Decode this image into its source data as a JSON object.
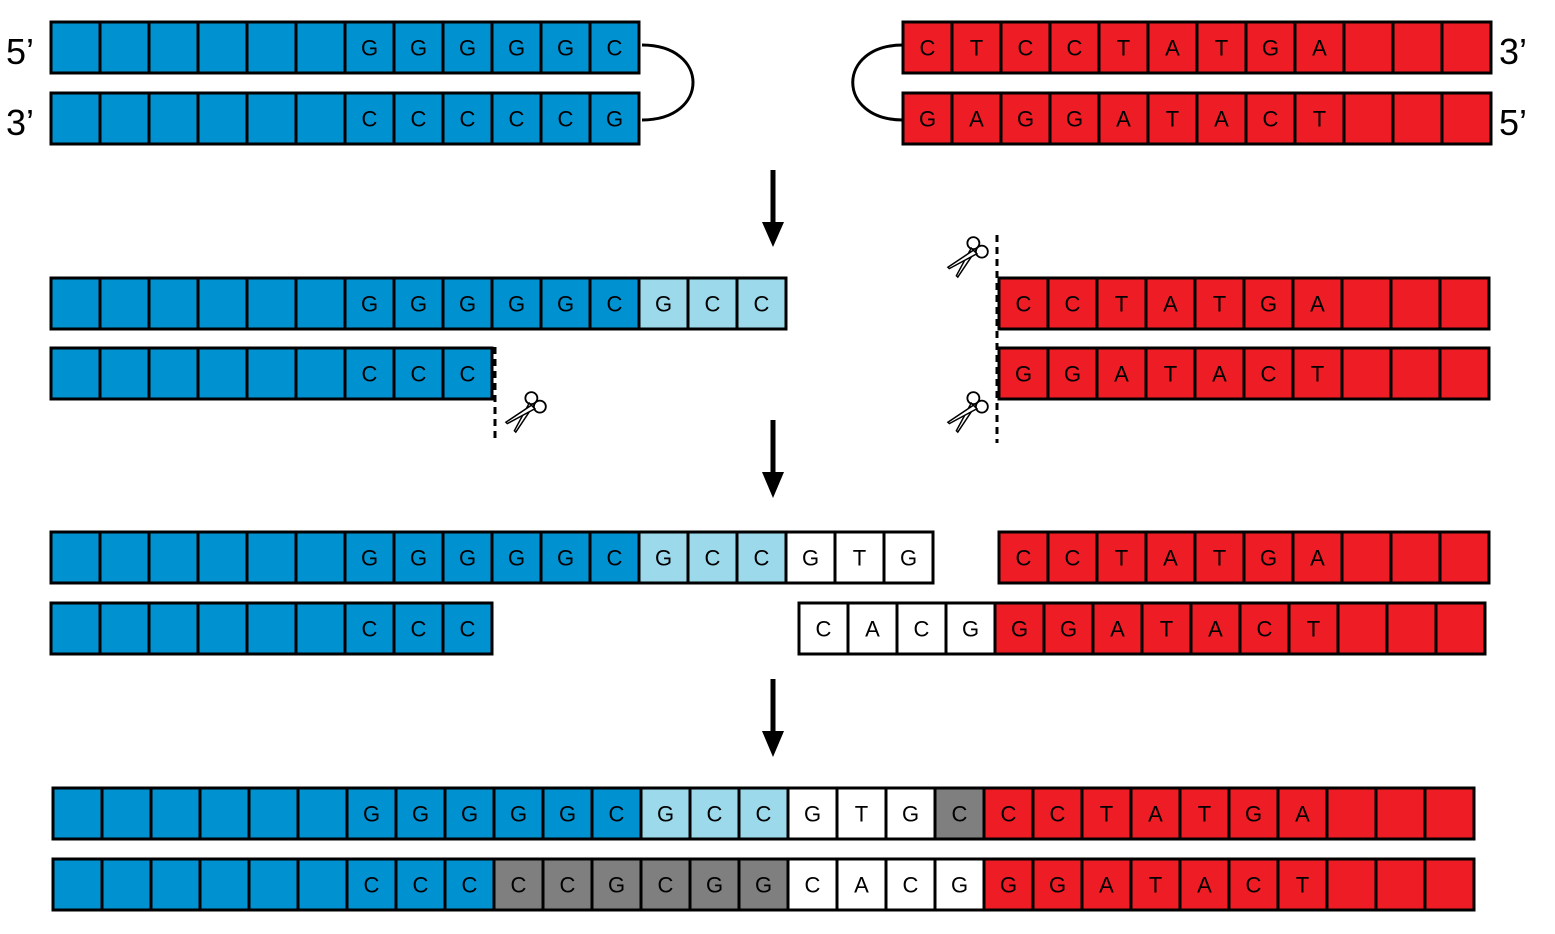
{
  "colors": {
    "blue": "#0091d1",
    "light_blue": "#9cd9ea",
    "red": "#ee1c25",
    "white": "#ffffff",
    "gray": "#7f7f7f",
    "stroke": "#000000"
  },
  "end_labels": {
    "top_left": "5’",
    "bottom_left": "3’",
    "top_right": "3’",
    "bottom_right": "5’"
  },
  "icons": [
    "scissors-icon",
    "down-arrow-icon",
    "cut-site-dashed-line",
    "hairpin-loop"
  ],
  "stages": [
    {
      "name": "hairpin-ends",
      "strands": [
        {
          "name": "blue-hairpin-top",
          "cells": [
            {
              "b": "",
              "c": "blue"
            },
            {
              "b": "",
              "c": "blue"
            },
            {
              "b": "",
              "c": "blue"
            },
            {
              "b": "",
              "c": "blue"
            },
            {
              "b": "",
              "c": "blue"
            },
            {
              "b": "",
              "c": "blue"
            },
            {
              "b": "G",
              "c": "blue"
            },
            {
              "b": "G",
              "c": "blue"
            },
            {
              "b": "G",
              "c": "blue"
            },
            {
              "b": "G",
              "c": "blue"
            },
            {
              "b": "G",
              "c": "blue"
            },
            {
              "b": "C",
              "c": "blue"
            }
          ]
        },
        {
          "name": "blue-hairpin-bottom",
          "cells": [
            {
              "b": "",
              "c": "blue"
            },
            {
              "b": "",
              "c": "blue"
            },
            {
              "b": "",
              "c": "blue"
            },
            {
              "b": "",
              "c": "blue"
            },
            {
              "b": "",
              "c": "blue"
            },
            {
              "b": "",
              "c": "blue"
            },
            {
              "b": "C",
              "c": "blue"
            },
            {
              "b": "C",
              "c": "blue"
            },
            {
              "b": "C",
              "c": "blue"
            },
            {
              "b": "C",
              "c": "blue"
            },
            {
              "b": "C",
              "c": "blue"
            },
            {
              "b": "G",
              "c": "blue"
            }
          ]
        },
        {
          "name": "red-hairpin-top",
          "cells": [
            {
              "b": "C",
              "c": "red"
            },
            {
              "b": "T",
              "c": "red"
            },
            {
              "b": "C",
              "c": "red"
            },
            {
              "b": "C",
              "c": "red"
            },
            {
              "b": "T",
              "c": "red"
            },
            {
              "b": "A",
              "c": "red"
            },
            {
              "b": "T",
              "c": "red"
            },
            {
              "b": "G",
              "c": "red"
            },
            {
              "b": "A",
              "c": "red"
            },
            {
              "b": "",
              "c": "red"
            },
            {
              "b": "",
              "c": "red"
            },
            {
              "b": "",
              "c": "red"
            }
          ]
        },
        {
          "name": "red-hairpin-bottom",
          "cells": [
            {
              "b": "G",
              "c": "red"
            },
            {
              "b": "A",
              "c": "red"
            },
            {
              "b": "G",
              "c": "red"
            },
            {
              "b": "G",
              "c": "red"
            },
            {
              "b": "A",
              "c": "red"
            },
            {
              "b": "T",
              "c": "red"
            },
            {
              "b": "A",
              "c": "red"
            },
            {
              "b": "C",
              "c": "red"
            },
            {
              "b": "T",
              "c": "red"
            },
            {
              "b": "",
              "c": "red"
            },
            {
              "b": "",
              "c": "red"
            },
            {
              "b": "",
              "c": "red"
            }
          ]
        }
      ]
    },
    {
      "name": "opened-hairpins",
      "strands": [
        {
          "name": "blue-opened-top",
          "cells": [
            {
              "b": "",
              "c": "blue"
            },
            {
              "b": "",
              "c": "blue"
            },
            {
              "b": "",
              "c": "blue"
            },
            {
              "b": "",
              "c": "blue"
            },
            {
              "b": "",
              "c": "blue"
            },
            {
              "b": "",
              "c": "blue"
            },
            {
              "b": "G",
              "c": "blue"
            },
            {
              "b": "G",
              "c": "blue"
            },
            {
              "b": "G",
              "c": "blue"
            },
            {
              "b": "G",
              "c": "blue"
            },
            {
              "b": "G",
              "c": "blue"
            },
            {
              "b": "C",
              "c": "blue"
            },
            {
              "b": "G",
              "c": "light_blue"
            },
            {
              "b": "C",
              "c": "light_blue"
            },
            {
              "b": "C",
              "c": "light_blue"
            }
          ]
        },
        {
          "name": "blue-opened-bottom",
          "cells": [
            {
              "b": "",
              "c": "blue"
            },
            {
              "b": "",
              "c": "blue"
            },
            {
              "b": "",
              "c": "blue"
            },
            {
              "b": "",
              "c": "blue"
            },
            {
              "b": "",
              "c": "blue"
            },
            {
              "b": "",
              "c": "blue"
            },
            {
              "b": "C",
              "c": "blue"
            },
            {
              "b": "C",
              "c": "blue"
            },
            {
              "b": "C",
              "c": "blue"
            }
          ]
        },
        {
          "name": "red-opened-top",
          "cells": [
            {
              "b": "C",
              "c": "red"
            },
            {
              "b": "C",
              "c": "red"
            },
            {
              "b": "T",
              "c": "red"
            },
            {
              "b": "A",
              "c": "red"
            },
            {
              "b": "T",
              "c": "red"
            },
            {
              "b": "G",
              "c": "red"
            },
            {
              "b": "A",
              "c": "red"
            },
            {
              "b": "",
              "c": "red"
            },
            {
              "b": "",
              "c": "red"
            },
            {
              "b": "",
              "c": "red"
            }
          ]
        },
        {
          "name": "red-opened-bottom",
          "cells": [
            {
              "b": "G",
              "c": "red"
            },
            {
              "b": "G",
              "c": "red"
            },
            {
              "b": "A",
              "c": "red"
            },
            {
              "b": "T",
              "c": "red"
            },
            {
              "b": "A",
              "c": "red"
            },
            {
              "b": "C",
              "c": "red"
            },
            {
              "b": "T",
              "c": "red"
            },
            {
              "b": "",
              "c": "red"
            },
            {
              "b": "",
              "c": "red"
            },
            {
              "b": "",
              "c": "red"
            }
          ]
        }
      ]
    },
    {
      "name": "n-nucleotides-added",
      "strands": [
        {
          "name": "blue-extended-top",
          "cells": [
            {
              "b": "",
              "c": "blue"
            },
            {
              "b": "",
              "c": "blue"
            },
            {
              "b": "",
              "c": "blue"
            },
            {
              "b": "",
              "c": "blue"
            },
            {
              "b": "",
              "c": "blue"
            },
            {
              "b": "",
              "c": "blue"
            },
            {
              "b": "G",
              "c": "blue"
            },
            {
              "b": "G",
              "c": "blue"
            },
            {
              "b": "G",
              "c": "blue"
            },
            {
              "b": "G",
              "c": "blue"
            },
            {
              "b": "G",
              "c": "blue"
            },
            {
              "b": "C",
              "c": "blue"
            },
            {
              "b": "G",
              "c": "light_blue"
            },
            {
              "b": "C",
              "c": "light_blue"
            },
            {
              "b": "C",
              "c": "light_blue"
            },
            {
              "b": "G",
              "c": "white"
            },
            {
              "b": "T",
              "c": "white"
            },
            {
              "b": "G",
              "c": "white"
            }
          ]
        },
        {
          "name": "blue-extended-bottom",
          "cells": [
            {
              "b": "",
              "c": "blue"
            },
            {
              "b": "",
              "c": "blue"
            },
            {
              "b": "",
              "c": "blue"
            },
            {
              "b": "",
              "c": "blue"
            },
            {
              "b": "",
              "c": "blue"
            },
            {
              "b": "",
              "c": "blue"
            },
            {
              "b": "C",
              "c": "blue"
            },
            {
              "b": "C",
              "c": "blue"
            },
            {
              "b": "C",
              "c": "blue"
            }
          ]
        },
        {
          "name": "red-extended-top",
          "cells": [
            {
              "b": "C",
              "c": "red"
            },
            {
              "b": "C",
              "c": "red"
            },
            {
              "b": "T",
              "c": "red"
            },
            {
              "b": "A",
              "c": "red"
            },
            {
              "b": "T",
              "c": "red"
            },
            {
              "b": "G",
              "c": "red"
            },
            {
              "b": "A",
              "c": "red"
            },
            {
              "b": "",
              "c": "red"
            },
            {
              "b": "",
              "c": "red"
            },
            {
              "b": "",
              "c": "red"
            }
          ]
        },
        {
          "name": "red-extended-bottom",
          "cells": [
            {
              "b": "C",
              "c": "white"
            },
            {
              "b": "A",
              "c": "white"
            },
            {
              "b": "C",
              "c": "white"
            },
            {
              "b": "G",
              "c": "white"
            },
            {
              "b": "G",
              "c": "red"
            },
            {
              "b": "G",
              "c": "red"
            },
            {
              "b": "A",
              "c": "red"
            },
            {
              "b": "T",
              "c": "red"
            },
            {
              "b": "A",
              "c": "red"
            },
            {
              "b": "C",
              "c": "red"
            },
            {
              "b": "T",
              "c": "red"
            },
            {
              "b": "",
              "c": "red"
            },
            {
              "b": "",
              "c": "red"
            },
            {
              "b": "",
              "c": "red"
            }
          ]
        }
      ]
    },
    {
      "name": "joined-junction",
      "strands": [
        {
          "name": "joined-top",
          "cells": [
            {
              "b": "",
              "c": "blue"
            },
            {
              "b": "",
              "c": "blue"
            },
            {
              "b": "",
              "c": "blue"
            },
            {
              "b": "",
              "c": "blue"
            },
            {
              "b": "",
              "c": "blue"
            },
            {
              "b": "",
              "c": "blue"
            },
            {
              "b": "G",
              "c": "blue"
            },
            {
              "b": "G",
              "c": "blue"
            },
            {
              "b": "G",
              "c": "blue"
            },
            {
              "b": "G",
              "c": "blue"
            },
            {
              "b": "G",
              "c": "blue"
            },
            {
              "b": "C",
              "c": "blue"
            },
            {
              "b": "G",
              "c": "light_blue"
            },
            {
              "b": "C",
              "c": "light_blue"
            },
            {
              "b": "C",
              "c": "light_blue"
            },
            {
              "b": "G",
              "c": "white"
            },
            {
              "b": "T",
              "c": "white"
            },
            {
              "b": "G",
              "c": "white"
            },
            {
              "b": "C",
              "c": "gray"
            },
            {
              "b": "C",
              "c": "red"
            },
            {
              "b": "C",
              "c": "red"
            },
            {
              "b": "T",
              "c": "red"
            },
            {
              "b": "A",
              "c": "red"
            },
            {
              "b": "T",
              "c": "red"
            },
            {
              "b": "G",
              "c": "red"
            },
            {
              "b": "A",
              "c": "red"
            },
            {
              "b": "",
              "c": "red"
            },
            {
              "b": "",
              "c": "red"
            },
            {
              "b": "",
              "c": "red"
            }
          ]
        },
        {
          "name": "joined-bottom",
          "cells": [
            {
              "b": "",
              "c": "blue"
            },
            {
              "b": "",
              "c": "blue"
            },
            {
              "b": "",
              "c": "blue"
            },
            {
              "b": "",
              "c": "blue"
            },
            {
              "b": "",
              "c": "blue"
            },
            {
              "b": "",
              "c": "blue"
            },
            {
              "b": "C",
              "c": "blue"
            },
            {
              "b": "C",
              "c": "blue"
            },
            {
              "b": "C",
              "c": "blue"
            },
            {
              "b": "C",
              "c": "gray"
            },
            {
              "b": "C",
              "c": "gray"
            },
            {
              "b": "G",
              "c": "gray"
            },
            {
              "b": "C",
              "c": "gray"
            },
            {
              "b": "G",
              "c": "gray"
            },
            {
              "b": "G",
              "c": "gray"
            },
            {
              "b": "C",
              "c": "white"
            },
            {
              "b": "A",
              "c": "white"
            },
            {
              "b": "C",
              "c": "white"
            },
            {
              "b": "G",
              "c": "white"
            },
            {
              "b": "G",
              "c": "red"
            },
            {
              "b": "G",
              "c": "red"
            },
            {
              "b": "A",
              "c": "red"
            },
            {
              "b": "T",
              "c": "red"
            },
            {
              "b": "A",
              "c": "red"
            },
            {
              "b": "C",
              "c": "red"
            },
            {
              "b": "T",
              "c": "red"
            },
            {
              "b": "",
              "c": "red"
            },
            {
              "b": "",
              "c": "red"
            },
            {
              "b": "",
              "c": "red"
            }
          ]
        }
      ]
    }
  ]
}
